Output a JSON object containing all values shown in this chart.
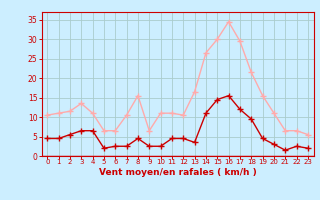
{
  "x": [
    0,
    1,
    2,
    3,
    4,
    5,
    6,
    7,
    8,
    9,
    10,
    11,
    12,
    13,
    14,
    15,
    16,
    17,
    18,
    19,
    20,
    21,
    22,
    23
  ],
  "wind_avg": [
    4.5,
    4.5,
    5.5,
    6.5,
    6.5,
    2.0,
    2.5,
    2.5,
    4.5,
    2.5,
    2.5,
    4.5,
    4.5,
    3.5,
    11.0,
    14.5,
    15.5,
    12.0,
    9.5,
    4.5,
    3.0,
    1.5,
    2.5,
    2.0
  ],
  "wind_gust": [
    10.5,
    11.0,
    11.5,
    13.5,
    11.0,
    6.5,
    6.5,
    10.5,
    15.5,
    6.5,
    11.0,
    11.0,
    10.5,
    16.5,
    26.5,
    30.0,
    34.5,
    29.5,
    21.5,
    15.5,
    11.0,
    6.5,
    6.5,
    5.5
  ],
  "avg_color": "#cc0000",
  "gust_color": "#ffaaaa",
  "bg_color": "#cceeff",
  "grid_color": "#aacccc",
  "xlabel": "Vent moyen/en rafales ( km/h )",
  "xlabel_color": "#cc0000",
  "tick_color": "#cc0000",
  "ylim": [
    0,
    37
  ],
  "yticks": [
    0,
    5,
    10,
    15,
    20,
    25,
    30,
    35
  ],
  "xlim": [
    -0.5,
    23.5
  ]
}
